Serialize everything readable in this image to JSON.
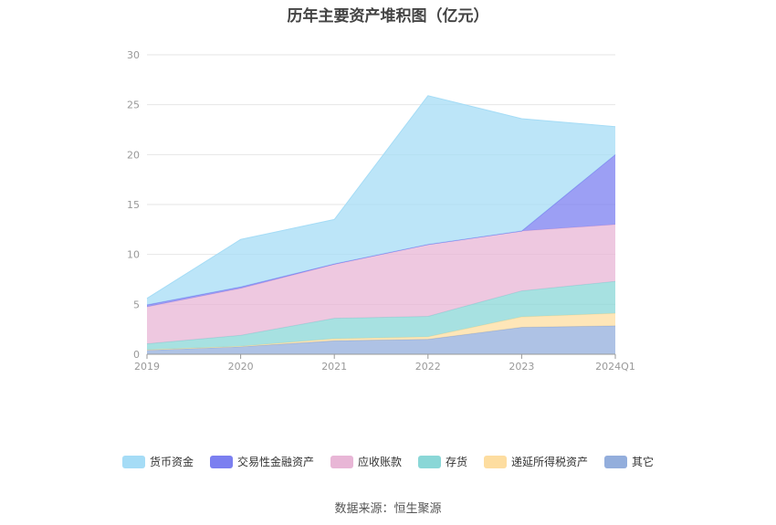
{
  "chart_data": {
    "type": "area",
    "title": "历年主要资产堆积图（亿元）",
    "categories": [
      "2019",
      "2020",
      "2021",
      "2022",
      "2023",
      "2024Q1"
    ],
    "ylim": [
      0,
      30
    ],
    "yticks": [
      "0",
      "5",
      "10",
      "15",
      "20",
      "25",
      "30"
    ],
    "stacked": true,
    "grid": true,
    "legend_position": "bottom",
    "series": [
      {
        "name": "其它",
        "color": "#93aedc",
        "values": [
          0.4,
          0.75,
          1.35,
          1.5,
          2.7,
          2.85
        ]
      },
      {
        "name": "递延所得税资产",
        "color": "#fddda0",
        "values": [
          0.05,
          0.05,
          0.2,
          0.25,
          1.05,
          1.25
        ]
      },
      {
        "name": "存货",
        "color": "#8ad7d7",
        "values": [
          0.6,
          1.1,
          2.05,
          2.05,
          2.6,
          3.2
        ]
      },
      {
        "name": "应收账款",
        "color": "#e8b6d6",
        "values": [
          3.7,
          4.7,
          5.4,
          7.2,
          6.0,
          5.7
        ]
      },
      {
        "name": "交易性金融资产",
        "color": "#7b7ff0",
        "values": [
          0.2,
          0.15,
          0.05,
          0.0,
          0.0,
          7.0
        ]
      },
      {
        "name": "货币资金",
        "color": "#a5dcf6",
        "values": [
          0.65,
          4.75,
          4.45,
          14.9,
          11.25,
          2.8
        ]
      }
    ]
  },
  "legend": [
    {
      "label": "货币资金",
      "color": "#a5dcf6"
    },
    {
      "label": "交易性金融资产",
      "color": "#7b7ff0"
    },
    {
      "label": "应收账款",
      "color": "#e8b6d6"
    },
    {
      "label": "存货",
      "color": "#8ad7d7"
    },
    {
      "label": "递延所得税资产",
      "color": "#fddda0"
    },
    {
      "label": "其它",
      "color": "#93aedc"
    }
  ],
  "source": "数据来源：恒生聚源"
}
